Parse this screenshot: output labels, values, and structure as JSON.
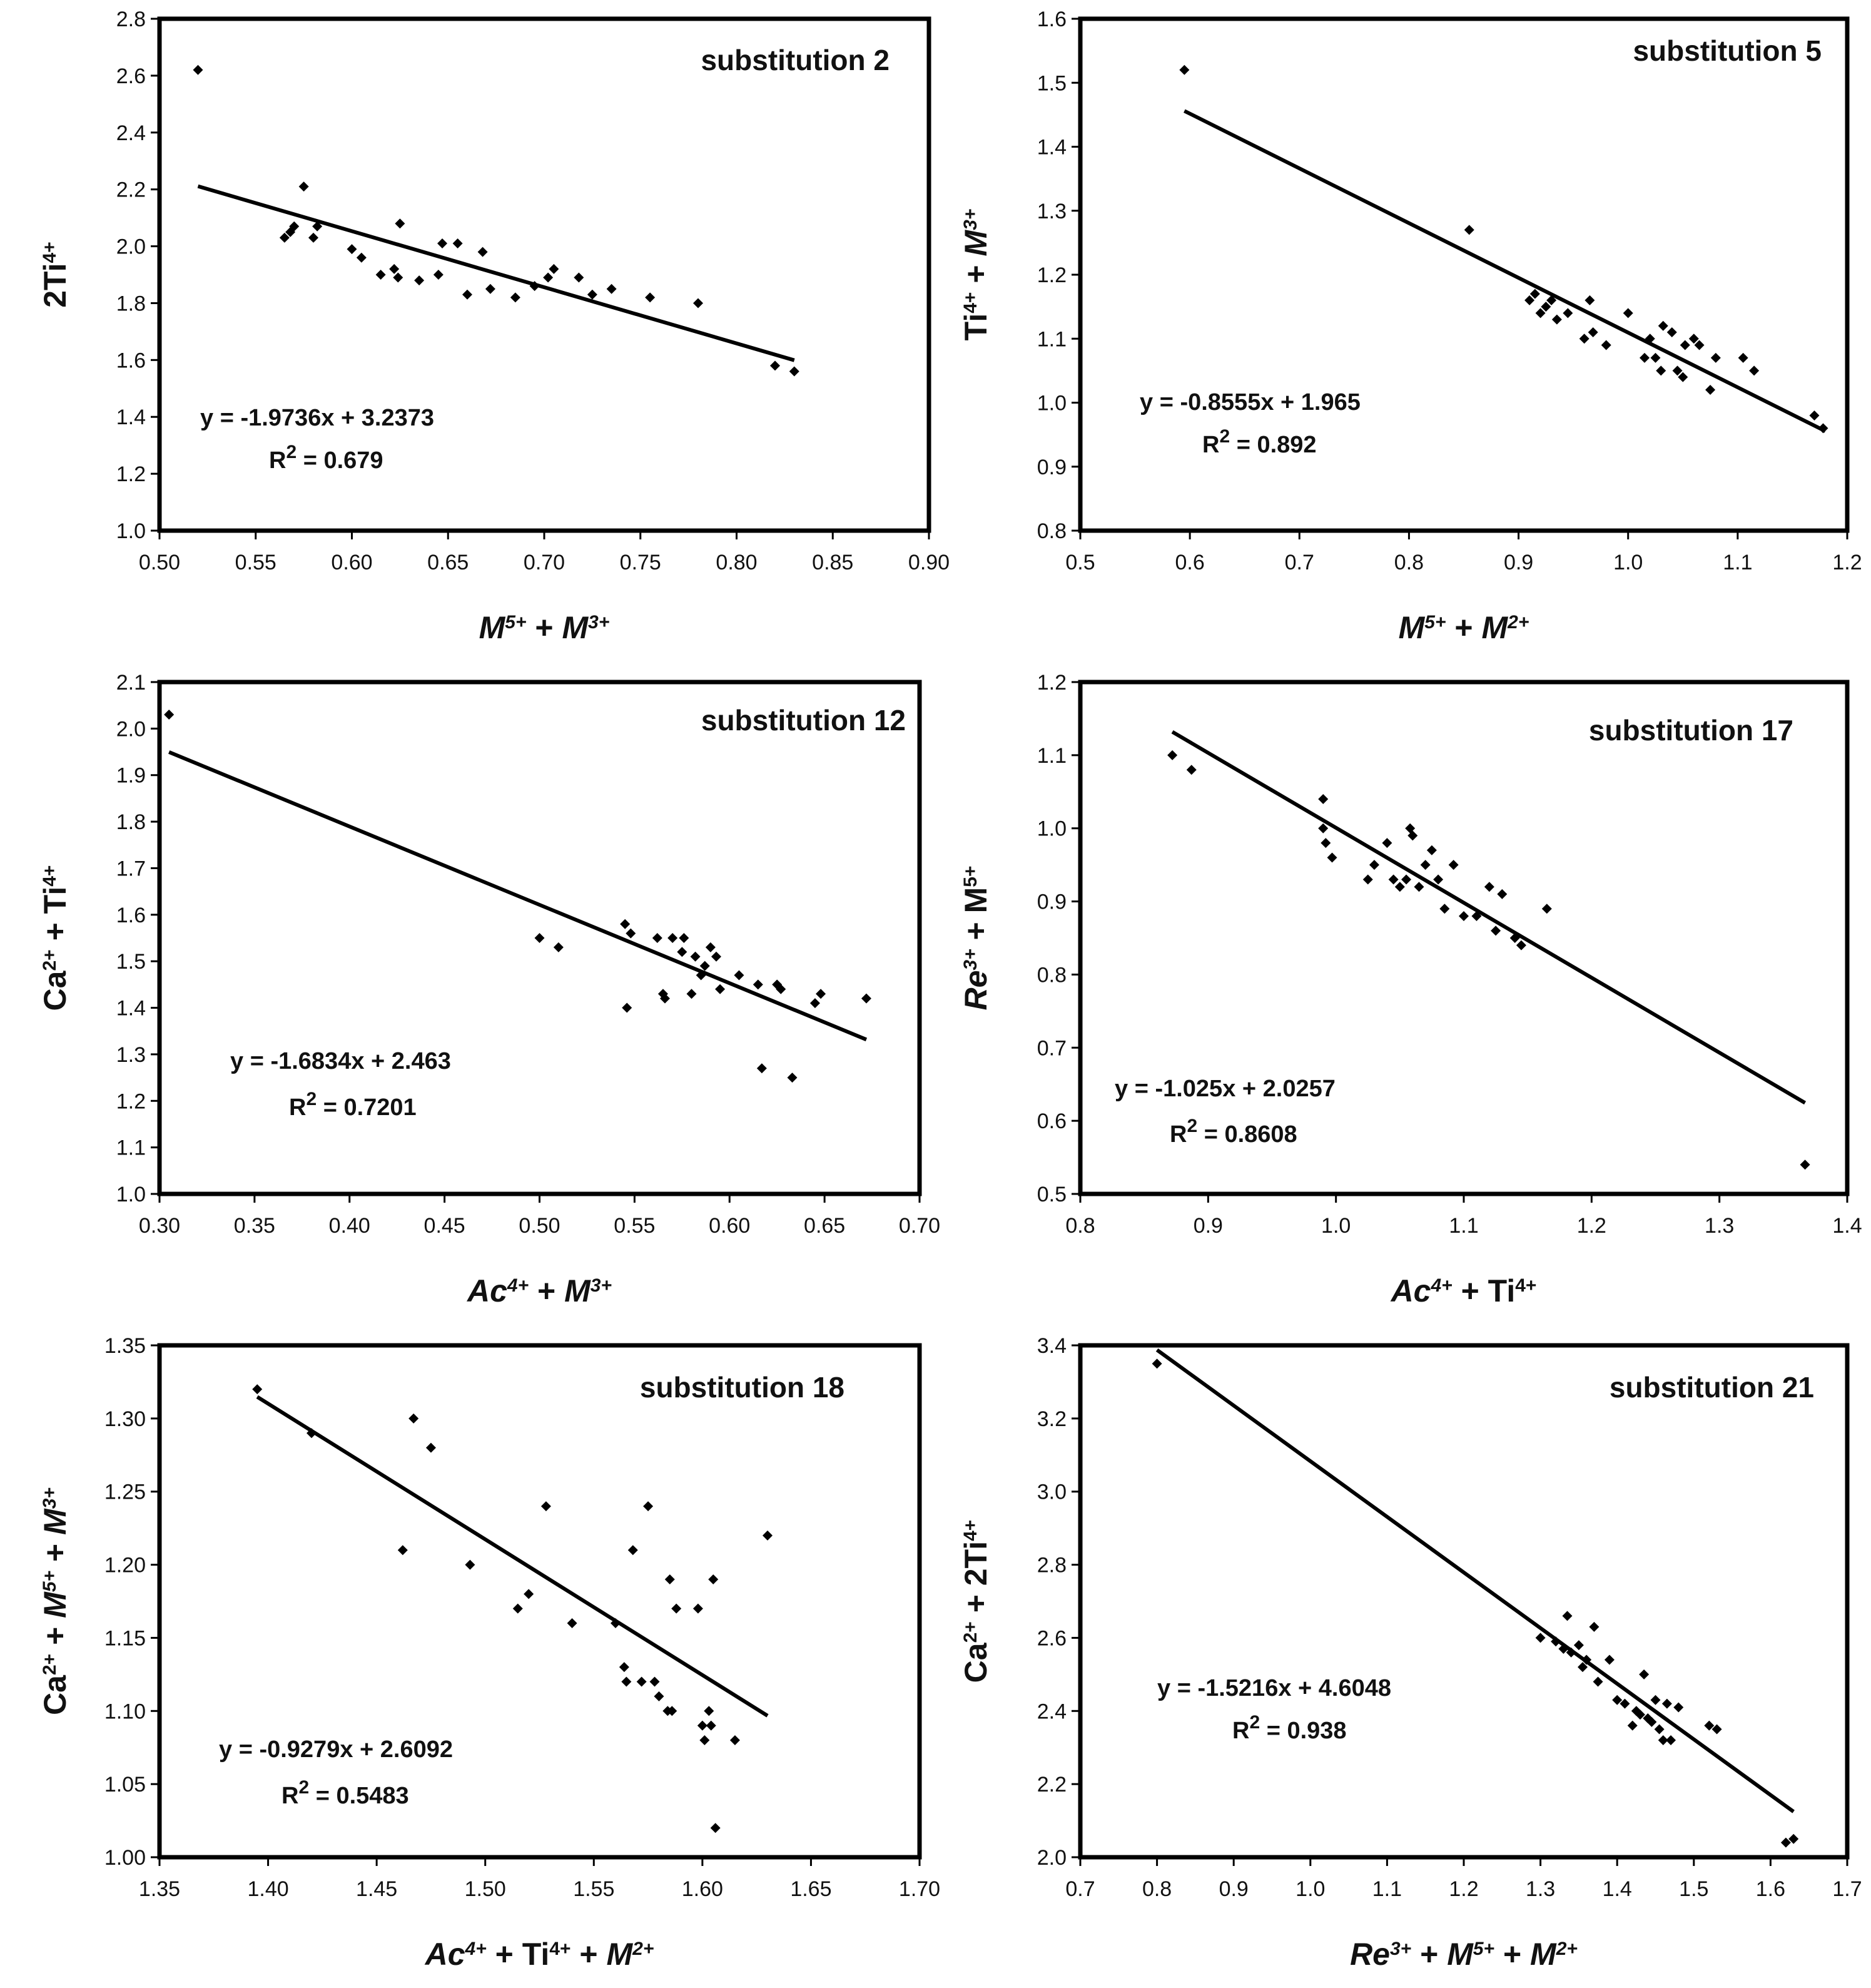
{
  "chart_data": [
    {
      "type": "scatter",
      "title": "substitution 2",
      "xlabel": [
        {
          "t": "M",
          "i": true
        },
        {
          "t": "5+",
          "s": true,
          "i": true
        },
        {
          "t": " + "
        },
        {
          "t": "M",
          "i": true
        },
        {
          "t": "3+",
          "s": true,
          "i": true
        }
      ],
      "ylabel": [
        {
          "t": "2Ti"
        },
        {
          "t": "4+",
          "s": true
        }
      ],
      "xlim": [
        0.5,
        0.9
      ],
      "ylim": [
        1.0,
        2.8
      ],
      "xticks": [
        "0.50",
        "0.55",
        "0.60",
        "0.65",
        "0.70",
        "0.75",
        "0.80",
        "0.85",
        "0.90"
      ],
      "yticks": [
        "1.0",
        "1.2",
        "1.4",
        "1.6",
        "1.8",
        "2.0",
        "2.2",
        "2.4",
        "2.6",
        "2.8"
      ],
      "equation": "y = -1.9736x + 3.2373",
      "r2": {
        "label": "R",
        "sup": "2",
        "value": " = 0.679"
      },
      "fit": {
        "slope": -1.9736,
        "intercept": 3.2373,
        "x_range": [
          0.52,
          0.83
        ]
      },
      "points": [
        [
          0.52,
          2.62
        ],
        [
          0.565,
          2.03
        ],
        [
          0.568,
          2.05
        ],
        [
          0.57,
          2.07
        ],
        [
          0.575,
          2.21
        ],
        [
          0.58,
          2.03
        ],
        [
          0.582,
          2.07
        ],
        [
          0.6,
          1.99
        ],
        [
          0.605,
          1.96
        ],
        [
          0.615,
          1.9
        ],
        [
          0.622,
          1.92
        ],
        [
          0.624,
          1.89
        ],
        [
          0.625,
          2.08
        ],
        [
          0.635,
          1.88
        ],
        [
          0.645,
          1.9
        ],
        [
          0.647,
          2.01
        ],
        [
          0.655,
          2.01
        ],
        [
          0.66,
          1.83
        ],
        [
          0.668,
          1.98
        ],
        [
          0.672,
          1.85
        ],
        [
          0.685,
          1.82
        ],
        [
          0.695,
          1.86
        ],
        [
          0.702,
          1.89
        ],
        [
          0.705,
          1.92
        ],
        [
          0.718,
          1.89
        ],
        [
          0.725,
          1.83
        ],
        [
          0.735,
          1.85
        ],
        [
          0.755,
          1.82
        ],
        [
          0.78,
          1.8
        ],
        [
          0.82,
          1.58
        ],
        [
          0.83,
          1.56
        ]
      ]
    },
    {
      "type": "scatter",
      "title": "substitution 5",
      "xlabel": [
        {
          "t": "M",
          "i": true
        },
        {
          "t": "5+",
          "s": true,
          "i": true
        },
        {
          "t": " + "
        },
        {
          "t": "M",
          "i": true
        },
        {
          "t": "2+",
          "s": true,
          "i": true
        }
      ],
      "ylabel": [
        {
          "t": "Ti"
        },
        {
          "t": "4+",
          "s": true
        },
        {
          "t": " + "
        },
        {
          "t": "M",
          "i": true
        },
        {
          "t": "3+",
          "s": true,
          "i": true
        }
      ],
      "xlim": [
        0.5,
        1.2
      ],
      "ylim": [
        0.8,
        1.6
      ],
      "xticks": [
        "0.5",
        "0.6",
        "0.7",
        "0.8",
        "0.9",
        "1.0",
        "1.1",
        "1.2"
      ],
      "yticks": [
        "0.8",
        "0.9",
        "1.0",
        "1.1",
        "1.2",
        "1.3",
        "1.4",
        "1.5",
        "1.6"
      ],
      "equation": "y = -0.8555x + 1.965",
      "r2": {
        "label": "R",
        "sup": "2",
        "value": " = 0.892"
      },
      "fit": {
        "slope": -0.8555,
        "intercept": 1.965,
        "x_range": [
          0.595,
          1.18
        ]
      },
      "points": [
        [
          0.595,
          1.52
        ],
        [
          0.855,
          1.27
        ],
        [
          0.91,
          1.16
        ],
        [
          0.915,
          1.17
        ],
        [
          0.92,
          1.14
        ],
        [
          0.925,
          1.15
        ],
        [
          0.93,
          1.16
        ],
        [
          0.935,
          1.13
        ],
        [
          0.945,
          1.14
        ],
        [
          0.96,
          1.1
        ],
        [
          0.965,
          1.16
        ],
        [
          0.968,
          1.11
        ],
        [
          0.98,
          1.09
        ],
        [
          1.0,
          1.14
        ],
        [
          1.015,
          1.07
        ],
        [
          1.02,
          1.1
        ],
        [
          1.025,
          1.07
        ],
        [
          1.03,
          1.05
        ],
        [
          1.032,
          1.12
        ],
        [
          1.04,
          1.11
        ],
        [
          1.045,
          1.05
        ],
        [
          1.05,
          1.04
        ],
        [
          1.052,
          1.09
        ],
        [
          1.06,
          1.1
        ],
        [
          1.065,
          1.09
        ],
        [
          1.075,
          1.02
        ],
        [
          1.08,
          1.07
        ],
        [
          1.105,
          1.07
        ],
        [
          1.115,
          1.05
        ],
        [
          1.17,
          0.98
        ],
        [
          1.178,
          0.96
        ]
      ]
    },
    {
      "type": "scatter",
      "title": "substitution 12",
      "xlabel": [
        {
          "t": "Ac",
          "i": true
        },
        {
          "t": "4+",
          "s": true,
          "i": true
        },
        {
          "t": " + "
        },
        {
          "t": "M",
          "i": true
        },
        {
          "t": "3+",
          "s": true,
          "i": true
        }
      ],
      "ylabel": [
        {
          "t": "Ca"
        },
        {
          "t": "2+",
          "s": true
        },
        {
          "t": " + Ti"
        },
        {
          "t": "4+",
          "s": true
        }
      ],
      "xlim": [
        0.3,
        0.7
      ],
      "ylim": [
        1.0,
        2.1
      ],
      "xticks": [
        "0.30",
        "0.35",
        "0.40",
        "0.45",
        "0.50",
        "0.55",
        "0.60",
        "0.65",
        "0.70"
      ],
      "yticks": [
        "1.0",
        "1.1",
        "1.2",
        "1.3",
        "1.4",
        "1.5",
        "1.6",
        "1.7",
        "1.8",
        "1.9",
        "2.0",
        "2.1"
      ],
      "equation": "y = -1.6834x + 2.463",
      "r2": {
        "label": "R",
        "sup": "2",
        "value": " = 0.7201"
      },
      "fit": {
        "slope": -1.6834,
        "intercept": 2.463,
        "x_range": [
          0.305,
          0.672
        ]
      },
      "points": [
        [
          0.305,
          2.03
        ],
        [
          0.5,
          1.55
        ],
        [
          0.51,
          1.53
        ],
        [
          0.545,
          1.58
        ],
        [
          0.546,
          1.4
        ],
        [
          0.548,
          1.56
        ],
        [
          0.562,
          1.55
        ],
        [
          0.565,
          1.43
        ],
        [
          0.566,
          1.42
        ],
        [
          0.57,
          1.55
        ],
        [
          0.575,
          1.52
        ],
        [
          0.576,
          1.55
        ],
        [
          0.58,
          1.43
        ],
        [
          0.582,
          1.51
        ],
        [
          0.585,
          1.47
        ],
        [
          0.587,
          1.49
        ],
        [
          0.59,
          1.53
        ],
        [
          0.593,
          1.51
        ],
        [
          0.595,
          1.44
        ],
        [
          0.605,
          1.47
        ],
        [
          0.615,
          1.45
        ],
        [
          0.617,
          1.27
        ],
        [
          0.625,
          1.45
        ],
        [
          0.627,
          1.44
        ],
        [
          0.633,
          1.25
        ],
        [
          0.645,
          1.41
        ],
        [
          0.648,
          1.43
        ],
        [
          0.672,
          1.42
        ]
      ]
    },
    {
      "type": "scatter",
      "title": "substitution 17",
      "xlabel": [
        {
          "t": "Ac",
          "i": true
        },
        {
          "t": "4+",
          "s": true,
          "i": true
        },
        {
          "t": " + Ti"
        },
        {
          "t": "4+",
          "s": true
        }
      ],
      "ylabel": [
        {
          "t": "Re",
          "i": true
        },
        {
          "t": "3+",
          "s": true,
          "i": true
        },
        {
          "t": " + M"
        },
        {
          "t": "5+",
          "s": true
        }
      ],
      "xlim": [
        0.8,
        1.4
      ],
      "ylim": [
        0.5,
        1.2
      ],
      "xticks": [
        "0.8",
        "0.9",
        "1.0",
        "1.1",
        "1.2",
        "1.3",
        "1.4"
      ],
      "yticks": [
        "0.5",
        "0.6",
        "0.7",
        "0.8",
        "0.9",
        "1.0",
        "1.1",
        "1.2"
      ],
      "equation": "y = -1.025x + 2.0257",
      "r2": {
        "label": "R",
        "sup": "2",
        "value": " = 0.8608"
      },
      "fit": {
        "slope": -1.025,
        "intercept": 2.0257,
        "x_range": [
          0.872,
          1.367
        ]
      },
      "points": [
        [
          0.872,
          1.1
        ],
        [
          0.887,
          1.08
        ],
        [
          0.99,
          1.04
        ],
        [
          0.99,
          1.0
        ],
        [
          0.992,
          0.98
        ],
        [
          0.997,
          0.96
        ],
        [
          1.025,
          0.93
        ],
        [
          1.03,
          0.95
        ],
        [
          1.04,
          0.98
        ],
        [
          1.045,
          0.93
        ],
        [
          1.05,
          0.92
        ],
        [
          1.055,
          0.93
        ],
        [
          1.058,
          1.0
        ],
        [
          1.06,
          0.99
        ],
        [
          1.065,
          0.92
        ],
        [
          1.07,
          0.95
        ],
        [
          1.075,
          0.97
        ],
        [
          1.08,
          0.93
        ],
        [
          1.085,
          0.89
        ],
        [
          1.092,
          0.95
        ],
        [
          1.1,
          0.88
        ],
        [
          1.11,
          0.88
        ],
        [
          1.12,
          0.92
        ],
        [
          1.125,
          0.86
        ],
        [
          1.13,
          0.91
        ],
        [
          1.14,
          0.85
        ],
        [
          1.145,
          0.84
        ],
        [
          1.165,
          0.89
        ],
        [
          1.367,
          0.54
        ]
      ]
    },
    {
      "type": "scatter",
      "title": "substitution 18",
      "xlabel": [
        {
          "t": "Ac",
          "i": true
        },
        {
          "t": "4+",
          "s": true,
          "i": true
        },
        {
          "t": " + Ti"
        },
        {
          "t": "4+",
          "s": true
        },
        {
          "t": " + "
        },
        {
          "t": "M",
          "i": true
        },
        {
          "t": "2+",
          "s": true,
          "i": true
        }
      ],
      "ylabel": [
        {
          "t": "Ca"
        },
        {
          "t": "2+",
          "s": true
        },
        {
          "t": " + "
        },
        {
          "t": "M",
          "i": true
        },
        {
          "t": "5+",
          "s": true,
          "i": true
        },
        {
          "t": " + "
        },
        {
          "t": "M",
          "i": true
        },
        {
          "t": "3+",
          "s": true,
          "i": true
        }
      ],
      "xlim": [
        1.35,
        1.7
      ],
      "ylim": [
        1.0,
        1.35
      ],
      "xticks": [
        "1.35",
        "1.40",
        "1.45",
        "1.50",
        "1.55",
        "1.60",
        "1.65",
        "1.70"
      ],
      "yticks": [
        "1.00",
        "1.05",
        "1.10",
        "1.15",
        "1.20",
        "1.25",
        "1.30",
        "1.35"
      ],
      "equation": "y = -0.9279x + 2.6092",
      "r2": {
        "label": "R",
        "sup": "2",
        "value": " = 0.5483"
      },
      "fit": {
        "slope": -0.9279,
        "intercept": 2.6092,
        "x_range": [
          1.395,
          1.63
        ]
      },
      "points": [
        [
          1.395,
          1.32
        ],
        [
          1.42,
          1.29
        ],
        [
          1.462,
          1.21
        ],
        [
          1.467,
          1.3
        ],
        [
          1.475,
          1.28
        ],
        [
          1.493,
          1.2
        ],
        [
          1.515,
          1.17
        ],
        [
          1.52,
          1.18
        ],
        [
          1.528,
          1.24
        ],
        [
          1.54,
          1.16
        ],
        [
          1.56,
          1.16
        ],
        [
          1.564,
          1.13
        ],
        [
          1.565,
          1.12
        ],
        [
          1.568,
          1.21
        ],
        [
          1.572,
          1.12
        ],
        [
          1.575,
          1.24
        ],
        [
          1.578,
          1.12
        ],
        [
          1.58,
          1.11
        ],
        [
          1.584,
          1.1
        ],
        [
          1.586,
          1.1
        ],
        [
          1.585,
          1.19
        ],
        [
          1.588,
          1.17
        ],
        [
          1.598,
          1.17
        ],
        [
          1.6,
          1.09
        ],
        [
          1.601,
          1.08
        ],
        [
          1.603,
          1.1
        ],
        [
          1.604,
          1.09
        ],
        [
          1.605,
          1.19
        ],
        [
          1.606,
          1.02
        ],
        [
          1.615,
          1.08
        ],
        [
          1.63,
          1.22
        ]
      ]
    },
    {
      "type": "scatter",
      "title": "substitution 21",
      "xlabel": [
        {
          "t": "Re",
          "i": true
        },
        {
          "t": "3+",
          "s": true,
          "i": true
        },
        {
          "t": " + "
        },
        {
          "t": "M",
          "i": true
        },
        {
          "t": "5+",
          "s": true,
          "i": true
        },
        {
          "t": " + "
        },
        {
          "t": "M",
          "i": true
        },
        {
          "t": "2+",
          "s": true,
          "i": true
        }
      ],
      "ylabel": [
        {
          "t": "Ca"
        },
        {
          "t": "2+",
          "s": true
        },
        {
          "t": " + 2Ti"
        },
        {
          "t": "4+",
          "s": true
        }
      ],
      "xlim": [
        0.7,
        1.7
      ],
      "ylim": [
        2.0,
        3.4
      ],
      "xticks": [
        "0.7",
        "0.8",
        "0.9",
        "1.0",
        "1.1",
        "1.2",
        "1.3",
        "1.4",
        "1.5",
        "1.6",
        "1.7"
      ],
      "yticks": [
        "2.0",
        "2.2",
        "2.4",
        "2.6",
        "2.8",
        "3.0",
        "3.2",
        "3.4"
      ],
      "equation": "y = -1.5216x + 4.6048",
      "r2": {
        "label": "R",
        "sup": "2",
        "value": " = 0.938"
      },
      "fit": {
        "slope": -1.5216,
        "intercept": 4.6048,
        "x_range": [
          0.8,
          1.63
        ]
      },
      "points": [
        [
          0.8,
          3.35
        ],
        [
          1.3,
          2.6
        ],
        [
          1.32,
          2.59
        ],
        [
          1.33,
          2.57
        ],
        [
          1.335,
          2.66
        ],
        [
          1.34,
          2.56
        ],
        [
          1.35,
          2.58
        ],
        [
          1.355,
          2.52
        ],
        [
          1.36,
          2.54
        ],
        [
          1.37,
          2.63
        ],
        [
          1.375,
          2.48
        ],
        [
          1.39,
          2.54
        ],
        [
          1.4,
          2.43
        ],
        [
          1.41,
          2.42
        ],
        [
          1.42,
          2.36
        ],
        [
          1.425,
          2.4
        ],
        [
          1.43,
          2.39
        ],
        [
          1.435,
          2.5
        ],
        [
          1.44,
          2.38
        ],
        [
          1.445,
          2.37
        ],
        [
          1.45,
          2.43
        ],
        [
          1.455,
          2.35
        ],
        [
          1.46,
          2.32
        ],
        [
          1.465,
          2.42
        ],
        [
          1.47,
          2.32
        ],
        [
          1.48,
          2.41
        ],
        [
          1.52,
          2.36
        ],
        [
          1.53,
          2.35
        ],
        [
          1.62,
          2.04
        ],
        [
          1.63,
          2.05
        ]
      ]
    }
  ]
}
